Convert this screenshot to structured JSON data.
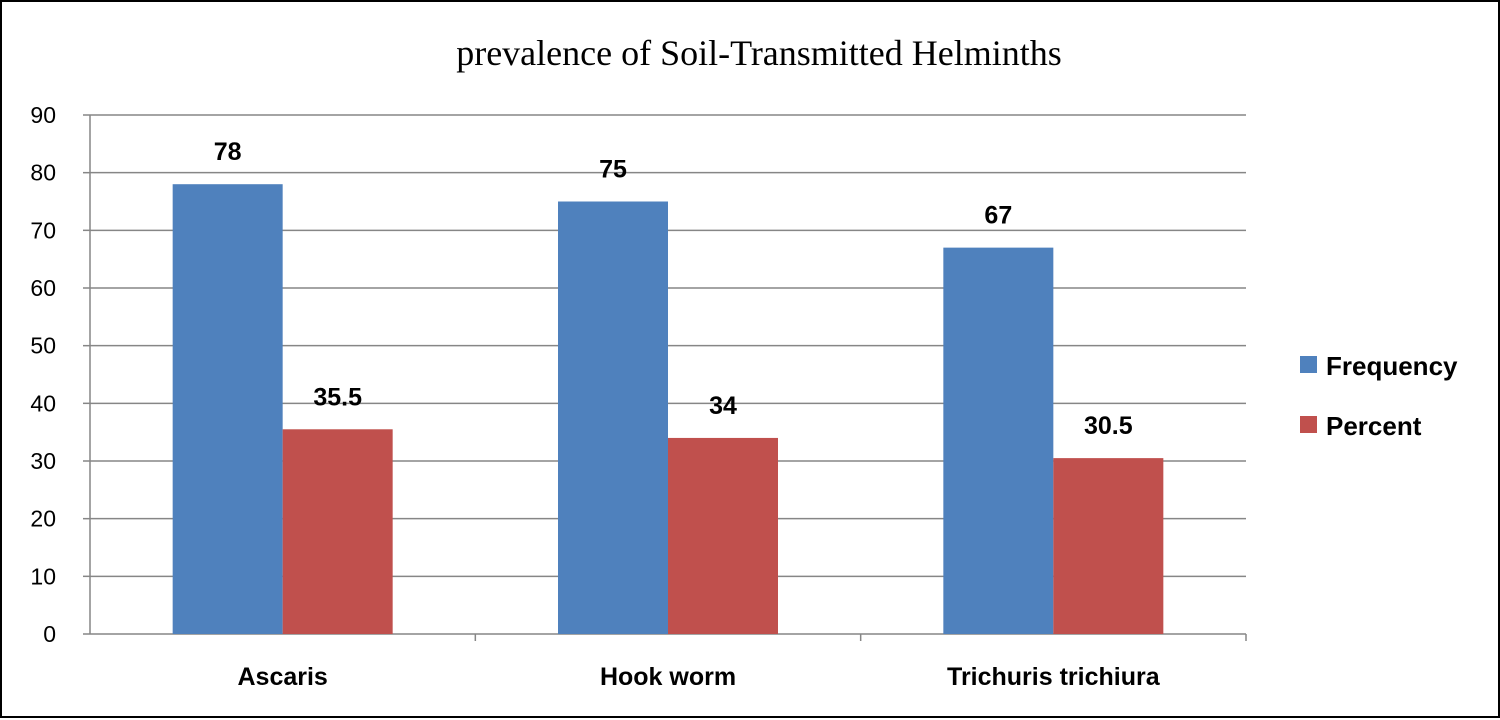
{
  "chart_data": {
    "type": "bar",
    "title": "prevalence of Soil-Transmitted Helminths",
    "xlabel": "",
    "ylabel": "",
    "categories": [
      "Ascaris",
      "Hook worm",
      "Trichuris trichiura"
    ],
    "series": [
      {
        "name": "Frequency",
        "values": [
          78,
          75,
          67
        ],
        "labels": [
          "78",
          "75",
          "67"
        ],
        "color": "#4F81BD"
      },
      {
        "name": "Percent",
        "values": [
          35.5,
          34,
          30.5
        ],
        "labels": [
          "35.5",
          "34",
          "30.5"
        ],
        "color": "#C0504D"
      }
    ],
    "ylim": [
      0,
      90
    ],
    "yticks": [
      "0",
      "10",
      "20",
      "30",
      "40",
      "50",
      "60",
      "70",
      "80",
      "90"
    ],
    "grid": true,
    "legend_position": "right"
  }
}
